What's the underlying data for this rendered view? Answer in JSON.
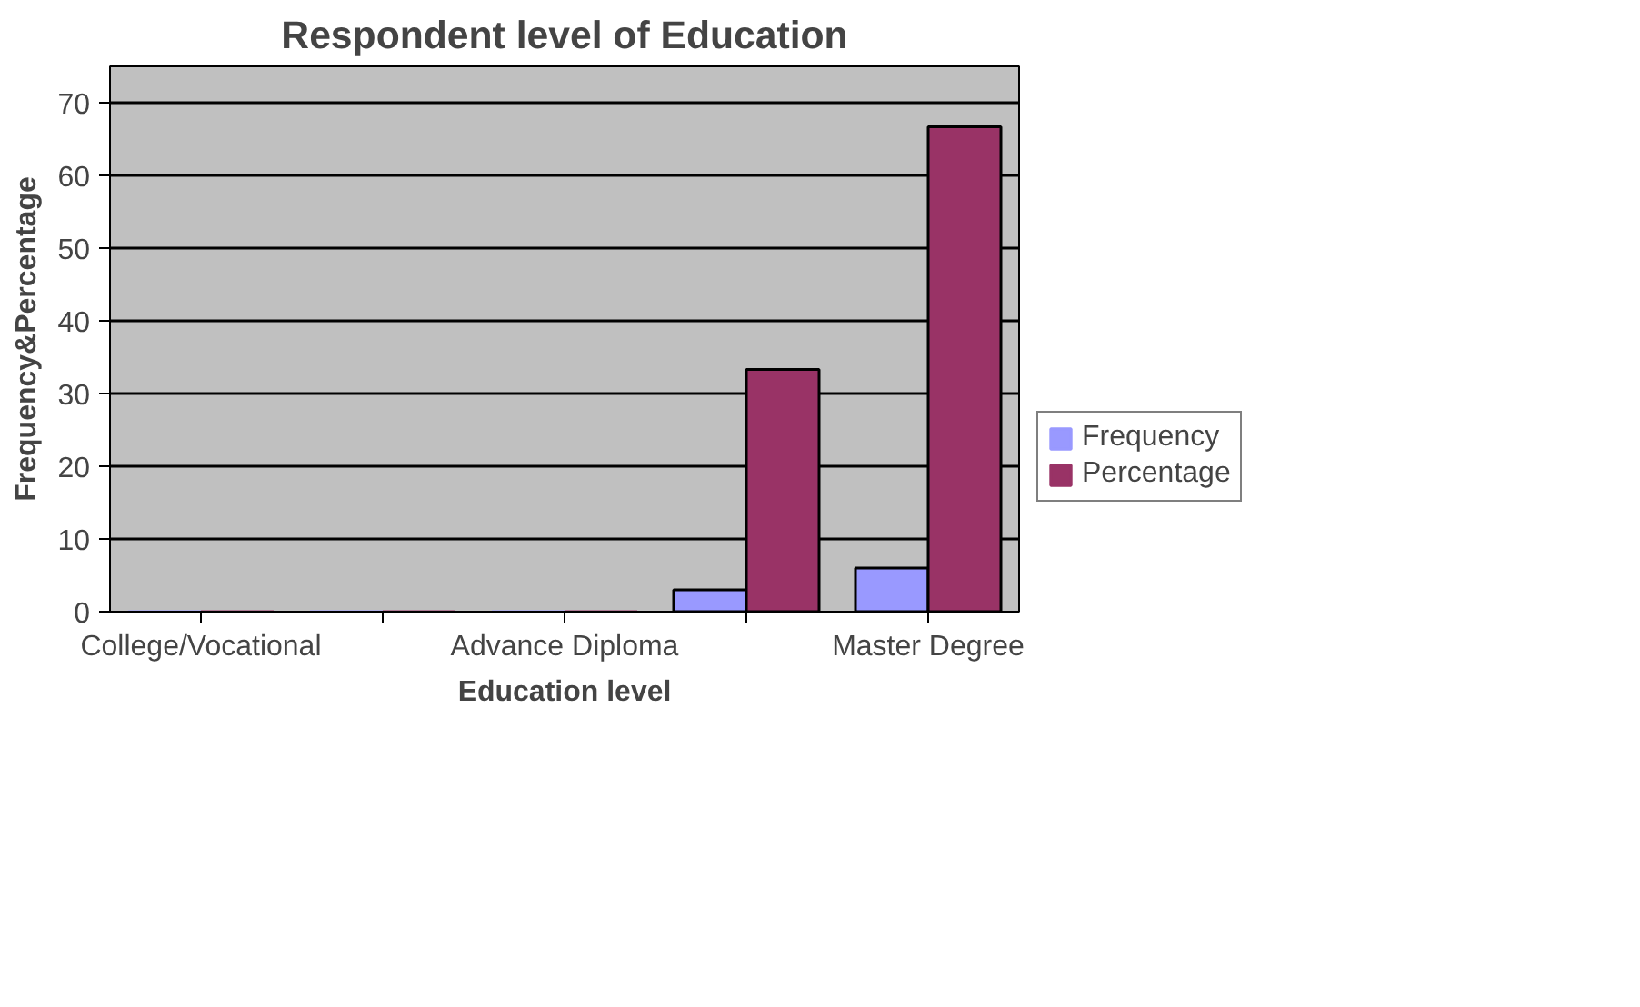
{
  "chart_data": {
    "type": "bar",
    "title": "Respondent level of Education",
    "xlabel": "Education level",
    "ylabel": "Frequency&Percentage",
    "categories": [
      "College/Vocational",
      null,
      "Advance Diploma",
      null,
      "Master Degree"
    ],
    "series": [
      {
        "name": "Frequency",
        "color": "#9999ff",
        "values": [
          0,
          0,
          0,
          3,
          6
        ]
      },
      {
        "name": "Percentage",
        "color": "#993366",
        "values": [
          0,
          0,
          0,
          33.3,
          66.7
        ]
      }
    ],
    "ylim": [
      0,
      75
    ],
    "yticks": [
      0,
      10,
      20,
      30,
      40,
      50,
      60,
      70
    ],
    "grid": "y",
    "legend": "right"
  }
}
